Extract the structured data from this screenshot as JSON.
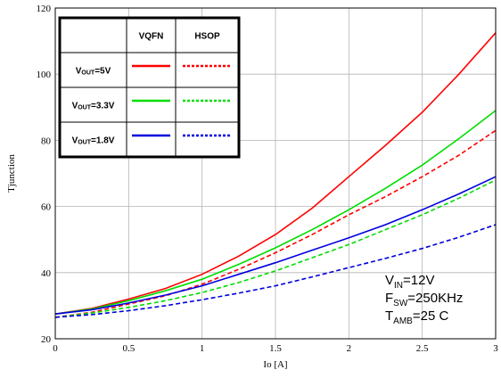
{
  "chart_data": {
    "type": "line",
    "xlabel": "Io [A]",
    "ylabel": "Tjunction",
    "xlim": [
      0,
      3
    ],
    "ylim": [
      20,
      120
    ],
    "x_ticks": [
      "0",
      "0.5",
      "1",
      "1.5",
      "2",
      "2.5",
      "3"
    ],
    "y_ticks": [
      "20",
      "40",
      "60",
      "80",
      "100",
      "120"
    ],
    "grid": true,
    "x": [
      0,
      0.25,
      0.5,
      0.75,
      1.0,
      1.25,
      1.5,
      1.75,
      2.0,
      2.25,
      2.5,
      2.75,
      3.0
    ],
    "series": [
      {
        "package": "VQFN",
        "vout": "5V",
        "color": "#ff0000",
        "dashed": false,
        "values": [
          27.5,
          29.2,
          32.0,
          35.2,
          39.5,
          45.0,
          51.5,
          59.5,
          69.0,
          78.5,
          88.5,
          100.0,
          112.5
        ]
      },
      {
        "package": "HSOP",
        "vout": "5V",
        "color": "#ff0000",
        "dashed": true,
        "values": [
          26.5,
          28.0,
          30.5,
          33.0,
          36.5,
          41.0,
          46.0,
          51.5,
          57.5,
          63.0,
          69.0,
          75.5,
          83.0
        ]
      },
      {
        "package": "VQFN",
        "vout": "3.3V",
        "color": "#00dd00",
        "dashed": false,
        "values": [
          27.5,
          29.0,
          31.5,
          34.5,
          38.0,
          42.5,
          47.5,
          53.0,
          59.0,
          65.5,
          72.5,
          80.5,
          89.0
        ]
      },
      {
        "package": "HSOP",
        "vout": "3.3V",
        "color": "#00dd00",
        "dashed": true,
        "values": [
          26.5,
          27.8,
          29.5,
          31.5,
          34.0,
          37.0,
          40.5,
          44.5,
          48.5,
          53.0,
          57.5,
          62.5,
          68.0
        ]
      },
      {
        "package": "VQFN",
        "vout": "1.8V",
        "color": "#0000dd",
        "dashed": false,
        "values": [
          27.5,
          28.8,
          30.8,
          33.2,
          36.0,
          39.5,
          43.0,
          46.8,
          50.5,
          54.5,
          59.0,
          63.8,
          69.0
        ]
      },
      {
        "package": "HSOP",
        "vout": "1.8V",
        "color": "#0000dd",
        "dashed": true,
        "values": [
          26.5,
          27.3,
          28.5,
          30.0,
          31.8,
          33.8,
          36.0,
          38.7,
          41.5,
          44.3,
          47.3,
          50.7,
          54.5
        ]
      }
    ],
    "legend": {
      "placement": "top-left",
      "col_headers": [
        "VQFN",
        "HSOP"
      ],
      "rows": [
        {
          "v": "V",
          "sub": "OUT",
          "val": "=5V",
          "color": "#ff0000"
        },
        {
          "v": "V",
          "sub": "OUT",
          "val": "=3.3V",
          "color": "#00dd00"
        },
        {
          "v": "V",
          "sub": "OUT",
          "val": "=1.8V",
          "color": "#0000dd"
        }
      ]
    },
    "annotations": [
      {
        "main": "V",
        "sub": "IN",
        "rest": "=12V"
      },
      {
        "main": "F",
        "sub": "SW",
        "rest": "=250KHz"
      },
      {
        "main": "T",
        "sub": "AMB",
        "rest": "=25 C"
      }
    ]
  }
}
